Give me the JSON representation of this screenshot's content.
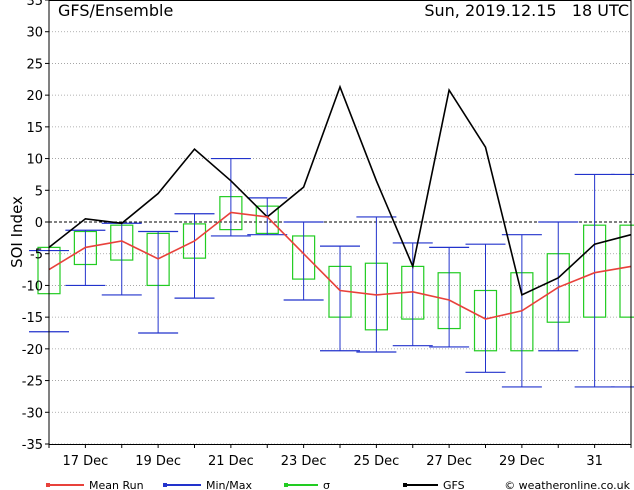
{
  "chart_data": {
    "type": "line",
    "title": "GFS/Ensemble",
    "run_label": "Sun, 2019.12.15   18 UTC",
    "ylabel": "SOI Index",
    "ylim": [
      -35,
      35
    ],
    "yticks": [
      -35,
      -30,
      -25,
      -20,
      -15,
      -10,
      -5,
      0,
      5,
      10,
      15,
      20,
      25,
      30,
      35
    ],
    "x": [
      "Dec 16",
      "Dec 17",
      "Dec 18",
      "Dec 19",
      "Dec 20",
      "Dec 21",
      "Dec 22",
      "Dec 23",
      "Dec 24",
      "Dec 25",
      "Dec 26",
      "Dec 27",
      "Dec 28",
      "Dec 29",
      "Dec 30",
      "Dec 31",
      "Jan 01"
    ],
    "xlim": [
      "Dec 16",
      "Jan 01"
    ],
    "xtick_labels": [
      {
        "x": "Dec 17",
        "label": "17 Dec"
      },
      {
        "x": "Dec 19",
        "label": "19 Dec"
      },
      {
        "x": "Dec 21",
        "label": "21 Dec"
      },
      {
        "x": "Dec 23",
        "label": "23 Dec"
      },
      {
        "x": "Dec 25",
        "label": "25 Dec"
      },
      {
        "x": "Dec 27",
        "label": "27 Dec"
      },
      {
        "x": "Dec 29",
        "label": "29 Dec"
      },
      {
        "x": "Dec 31",
        "label": "31"
      }
    ],
    "grid": true,
    "legend_position": "bottom",
    "series": [
      {
        "name": "Mean Run",
        "color": "#e8413b",
        "values": [
          -7.5,
          -4,
          -3,
          -5.8,
          -3,
          1.5,
          0.8,
          -5,
          -10.8,
          -11.5,
          -11,
          -12.3,
          -15.3,
          -14,
          -10.3,
          -8,
          -7
        ]
      },
      {
        "name": "GFS",
        "color": "#000000",
        "values": [
          -4,
          0.5,
          -0.2,
          4.5,
          11.5,
          6.5,
          0.8,
          5.5,
          21.3,
          6.5,
          -7,
          20.8,
          11.8,
          -11.5,
          -8.8,
          -3.5,
          -2
        ]
      },
      {
        "name": "Min/Max",
        "color": "#2233cc",
        "max": [
          -4.5,
          -1.3,
          -0.2,
          -1.5,
          1.3,
          10,
          3.8,
          0,
          -3.8,
          0.8,
          -3.3,
          -4,
          -3.5,
          -2,
          0,
          7.5,
          7.5
        ],
        "min": [
          -17.3,
          -10,
          -11.5,
          -17.5,
          -12,
          -2.2,
          -2,
          -12.3,
          -20.3,
          -20.5,
          -19.5,
          -19.7,
          -23.7,
          -26,
          -20.3,
          -26,
          -26
        ]
      },
      {
        "name": "σ",
        "color": "#22cc22",
        "upper": [
          -4,
          -1.5,
          -0.5,
          -1.8,
          -0.3,
          4,
          2.5,
          -2.2,
          -7,
          -6.5,
          -7,
          -8,
          -10.8,
          -8,
          -5,
          -0.5,
          -0.5
        ],
        "lower": [
          -11.3,
          -6.7,
          -6,
          -10,
          -5.7,
          -1.2,
          -1.8,
          -9,
          -15,
          -17,
          -15.3,
          -16.8,
          -20.3,
          -20.3,
          -15.8,
          -15,
          -15
        ]
      }
    ],
    "watermark": "© weatheronline.co.uk"
  }
}
